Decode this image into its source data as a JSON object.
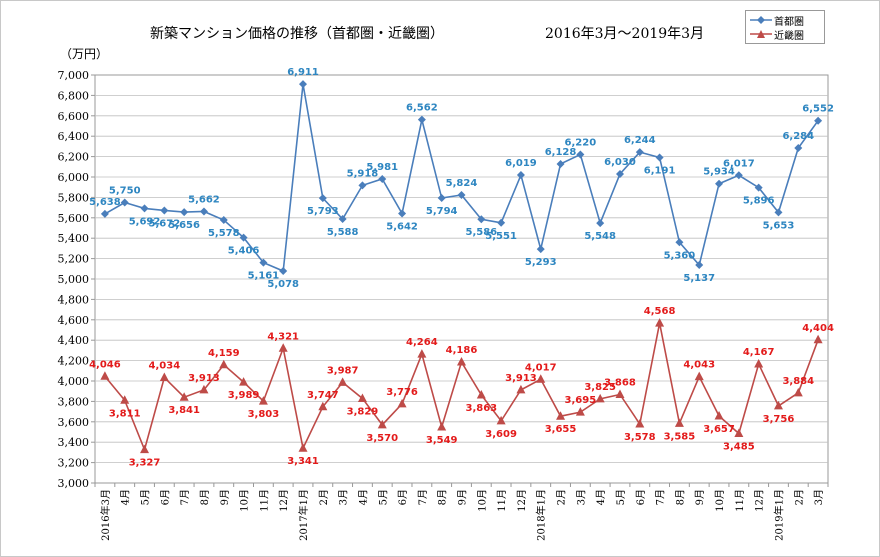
{
  "chart_data": {
    "type": "line",
    "title": "新築マンション価格の推移（首都圏・近畿圏）",
    "subtitle": "2016年3月～2019年3月",
    "ylabel": "（万円）",
    "ylim": [
      3000,
      7000
    ],
    "ystep": 200,
    "grid": true,
    "legend_position": "top-right",
    "categories": [
      "2016年3月",
      "4月",
      "5月",
      "6月",
      "7月",
      "8月",
      "9月",
      "10月",
      "11月",
      "12月",
      "2017年1月",
      "2月",
      "3月",
      "4月",
      "5月",
      "6月",
      "7月",
      "8月",
      "9月",
      "10月",
      "11月",
      "12月",
      "2018年1月",
      "2月",
      "3月",
      "4月",
      "5月",
      "6月",
      "7月",
      "8月",
      "9月",
      "10月",
      "11月",
      "12月",
      "2019年1月",
      "2月",
      "3月"
    ],
    "series": [
      {
        "name": "首都圏",
        "color": "#4a7ebb",
        "label_color": "#2e86c1",
        "marker": "diamond",
        "values": [
          5638,
          5750,
          5692,
          5672,
          5656,
          5662,
          5578,
          5406,
          5161,
          5078,
          6911,
          5793,
          5588,
          5918,
          5981,
          5642,
          6562,
          5794,
          5824,
          5586,
          5551,
          6019,
          5293,
          6128,
          6220,
          5548,
          6030,
          6244,
          6191,
          5360,
          5137,
          5934,
          6017,
          5896,
          5653,
          6284,
          6552
        ]
      },
      {
        "name": "近畿圏",
        "color": "#be4b48",
        "label_color": "#e31a1a",
        "marker": "triangle",
        "values": [
          4046,
          3811,
          3327,
          4034,
          3841,
          3913,
          4159,
          3989,
          3803,
          4321,
          3341,
          3747,
          3987,
          3829,
          3570,
          3776,
          4264,
          3549,
          4186,
          3863,
          3609,
          3913,
          4017,
          3655,
          3695,
          3825,
          3868,
          3578,
          4568,
          3585,
          4043,
          3657,
          3485,
          4167,
          3756,
          3884,
          4404
        ]
      }
    ]
  }
}
